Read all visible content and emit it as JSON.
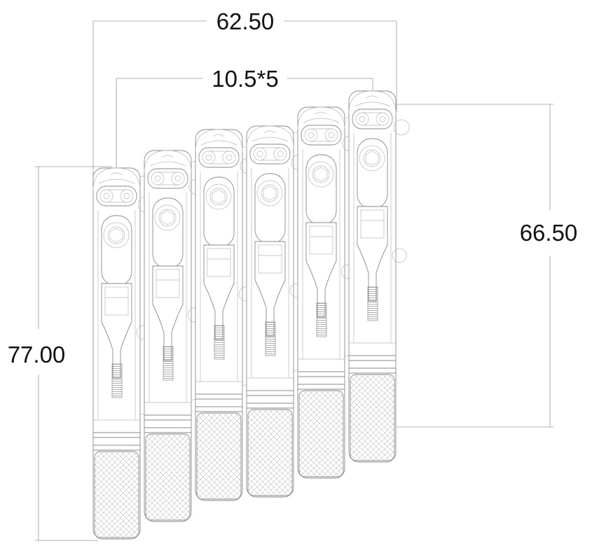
{
  "dimensions": {
    "overall_width": "62.50",
    "string_spacing": "10.5*5",
    "right_height": "66.50",
    "left_height": "77.00"
  },
  "saddles": {
    "count": 6,
    "top_offsets": [
      0,
      -25,
      -55,
      -60,
      -87,
      -110
    ]
  },
  "colors": {
    "outline": "#8a8a8a",
    "dimension_line": "#9a9a9a",
    "text": "#111111"
  }
}
